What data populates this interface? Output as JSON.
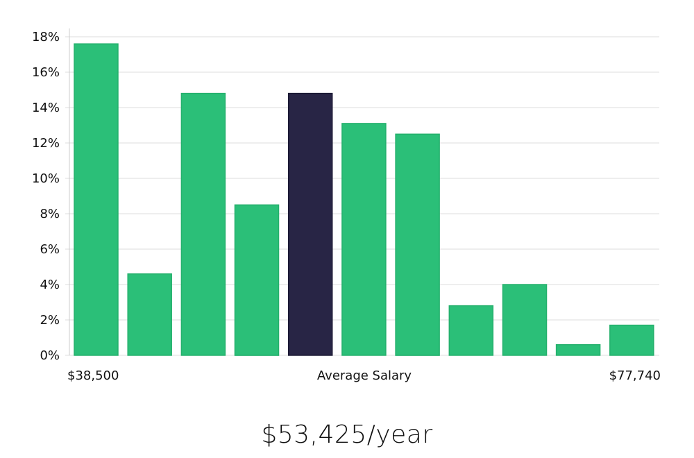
{
  "chart_data": {
    "type": "bar",
    "title": "",
    "xlabel": "Average Salary",
    "ylabel": "",
    "x_left_label": "$38,500",
    "x_right_label": "$77,740",
    "ylim": [
      0,
      18
    ],
    "yticks": [
      "0%",
      "2%",
      "4%",
      "6%",
      "8%",
      "10%",
      "12%",
      "14%",
      "16%",
      "18%"
    ],
    "grid": true,
    "values": [
      17.6,
      4.6,
      14.8,
      8.5,
      14.8,
      13.1,
      12.5,
      2.8,
      4.0,
      0.6,
      1.7
    ],
    "highlight_index": 4,
    "bar_color": "#2bbf78",
    "bar_edge_color": "#24b06c",
    "highlight_color": "#282545",
    "grid_color": "#dddddd"
  },
  "salary_display": "$53,425/year"
}
